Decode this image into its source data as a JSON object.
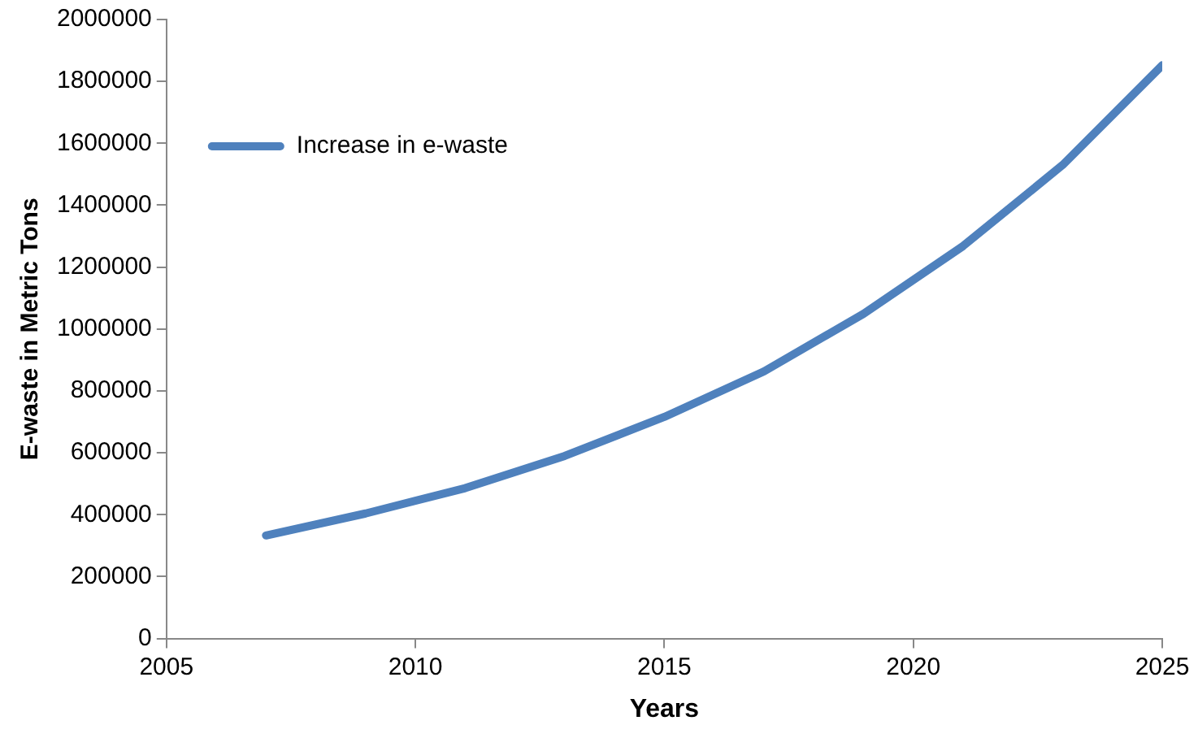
{
  "chart_data": {
    "type": "line",
    "xlabel": "Years",
    "ylabel": "E-waste in Metric Tons",
    "x": [
      2007,
      2009,
      2011,
      2013,
      2015,
      2017,
      2019,
      2021,
      2023,
      2025
    ],
    "series": [
      {
        "name": "Increase in e-waste",
        "color": "#4f81bd",
        "values": [
          333000,
          404000,
          486000,
          590000,
          716000,
          863000,
          1049000,
          1268000,
          1530000,
          1852000
        ]
      }
    ],
    "xlim": [
      2005,
      2025
    ],
    "xticks": [
      2005,
      2010,
      2015,
      2020,
      2025
    ],
    "ylim": [
      0,
      2000000
    ],
    "yticks": [
      0,
      200000,
      400000,
      600000,
      800000,
      1000000,
      1200000,
      1400000,
      1600000,
      1800000,
      2000000
    ],
    "grid": false,
    "legend": "top left",
    "marker": "none",
    "line_style": "solid"
  }
}
